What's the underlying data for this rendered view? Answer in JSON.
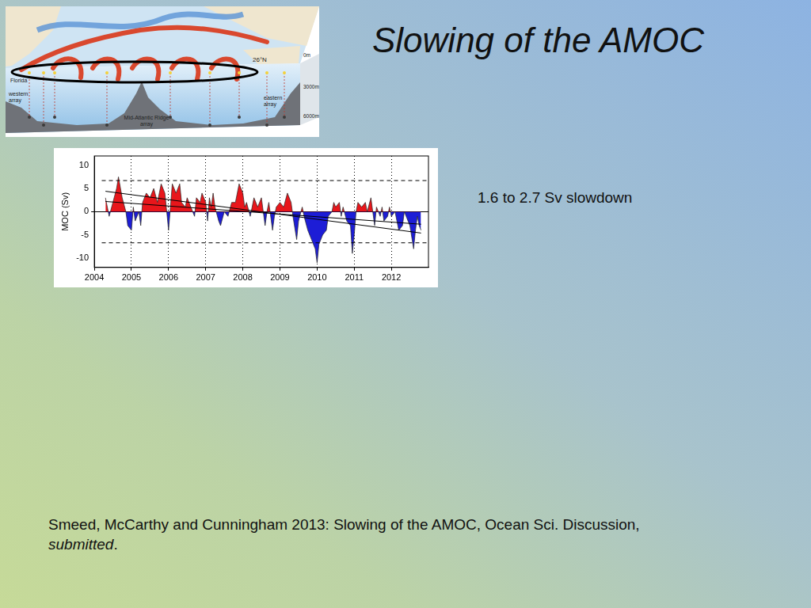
{
  "slide": {
    "title": "Slowing of the AMOC",
    "annotation": "1.6 to 2.7 Sv slowdown",
    "citation": [
      {
        "text": "Smeed, McCarthy and Cunningham 2013: Slowing of the AMOC, Ocean Sci. Discussion, "
      },
      {
        "text": "submitted",
        "italic": true
      },
      {
        "text": "."
      }
    ]
  },
  "diagram": {
    "latitude": "26°N",
    "depths": [
      "0m",
      "3000m",
      "6000m"
    ],
    "labels": [
      "Florida",
      "western array",
      "Mid-Atlantic Ridge array",
      "eastern array"
    ]
  },
  "chart_data": {
    "type": "line",
    "y_label": "MOC (Sv)",
    "x": [
      2004.3,
      2004.4,
      2004.5,
      2004.6,
      2004.65,
      2004.75,
      2004.85,
      2004.9,
      2005.0,
      2005.05,
      2005.1,
      2005.2,
      2005.25,
      2005.3,
      2005.4,
      2005.5,
      2005.6,
      2005.7,
      2005.8,
      2005.9,
      2005.95,
      2006.0,
      2006.05,
      2006.1,
      2006.2,
      2006.3,
      2006.35,
      2006.45,
      2006.5,
      2006.6,
      2006.7,
      2006.75,
      2006.85,
      2006.9,
      2007.0,
      2007.05,
      2007.1,
      2007.15,
      2007.2,
      2007.25,
      2007.35,
      2007.4,
      2007.5,
      2007.6,
      2007.7,
      2007.8,
      2007.9,
      2008.0,
      2008.05,
      2008.1,
      2008.2,
      2008.3,
      2008.4,
      2008.5,
      2008.6,
      2008.65,
      2008.7,
      2008.8,
      2008.85,
      2008.9,
      2009.0,
      2009.1,
      2009.2,
      2009.3,
      2009.35,
      2009.45,
      2009.5,
      2009.6,
      2009.65,
      2009.75,
      2009.85,
      2009.95,
      2010.0,
      2010.05,
      2010.15,
      2010.25,
      2010.3,
      2010.4,
      2010.45,
      2010.5,
      2010.6,
      2010.65,
      2010.7,
      2010.8,
      2010.9,
      2010.95,
      2011.0,
      2011.05,
      2011.1,
      2011.2,
      2011.3,
      2011.35,
      2011.45,
      2011.5,
      2011.55,
      2011.6,
      2011.7,
      2011.75,
      2011.8,
      2011.9,
      2011.95,
      2012.0,
      2012.1,
      2012.2,
      2012.3,
      2012.35,
      2012.45,
      2012.5,
      2012.6,
      2012.65,
      2012.7,
      2012.75,
      2012.8
    ],
    "series": [
      {
        "colors": [
          "#e8161b",
          "#1d1dd6"
        ],
        "values": [
          3,
          -1,
          2,
          5,
          7.5,
          3,
          0,
          -3,
          -4,
          1,
          -2,
          0,
          -3,
          2,
          4,
          3,
          5,
          2,
          6,
          4,
          0,
          -4,
          1,
          6,
          4,
          6,
          2,
          1,
          3,
          1,
          -1,
          3,
          2,
          4,
          2,
          -2,
          3,
          1,
          4,
          1,
          -2,
          -3,
          0,
          -1,
          2,
          2,
          6,
          4,
          1,
          2,
          -1,
          3,
          1,
          3,
          -3,
          0,
          2,
          -4,
          -1,
          1,
          2,
          1,
          4,
          2,
          -1,
          -6,
          -2,
          1,
          -1,
          -4,
          -6,
          -8,
          -11,
          -7,
          -5,
          -4,
          -1,
          0,
          2,
          1,
          2,
          -1,
          1,
          -2,
          -3,
          -9,
          -5,
          0,
          2,
          1,
          2,
          0,
          3,
          0,
          -3,
          1,
          -1,
          1,
          -2,
          -1,
          1,
          -1,
          0,
          -4,
          -3,
          0,
          -2,
          -3,
          -8,
          -4,
          -1,
          -3,
          -4
        ]
      },
      {
        "x": [
          2004.3,
          2012.8
        ],
        "values": [
          4.4,
          -4.6
        ],
        "color": "#000000",
        "line_style": "solid"
      },
      {
        "x": [
          2004.3,
          2012.8
        ],
        "values": [
          2.2,
          -2.7
        ],
        "color": "#000000",
        "line_style": "solid"
      },
      {
        "x": [
          2004.2,
          2013
        ],
        "values": [
          6.7,
          6.7
        ],
        "color": "#000000",
        "line_style": "dashed"
      },
      {
        "x": [
          2004.2,
          2013
        ],
        "values": [
          -6.7,
          -6.7
        ],
        "color": "#000000",
        "line_style": "dashed"
      }
    ],
    "xlim": [
      2004,
      2013
    ],
    "xticks": [
      2004,
      2005,
      2006,
      2007,
      2008,
      2009,
      2010,
      2011,
      2012
    ],
    "ylim": [
      -12,
      12
    ],
    "yticks": [
      -10,
      -5,
      0,
      5,
      10
    ],
    "grid": true
  }
}
